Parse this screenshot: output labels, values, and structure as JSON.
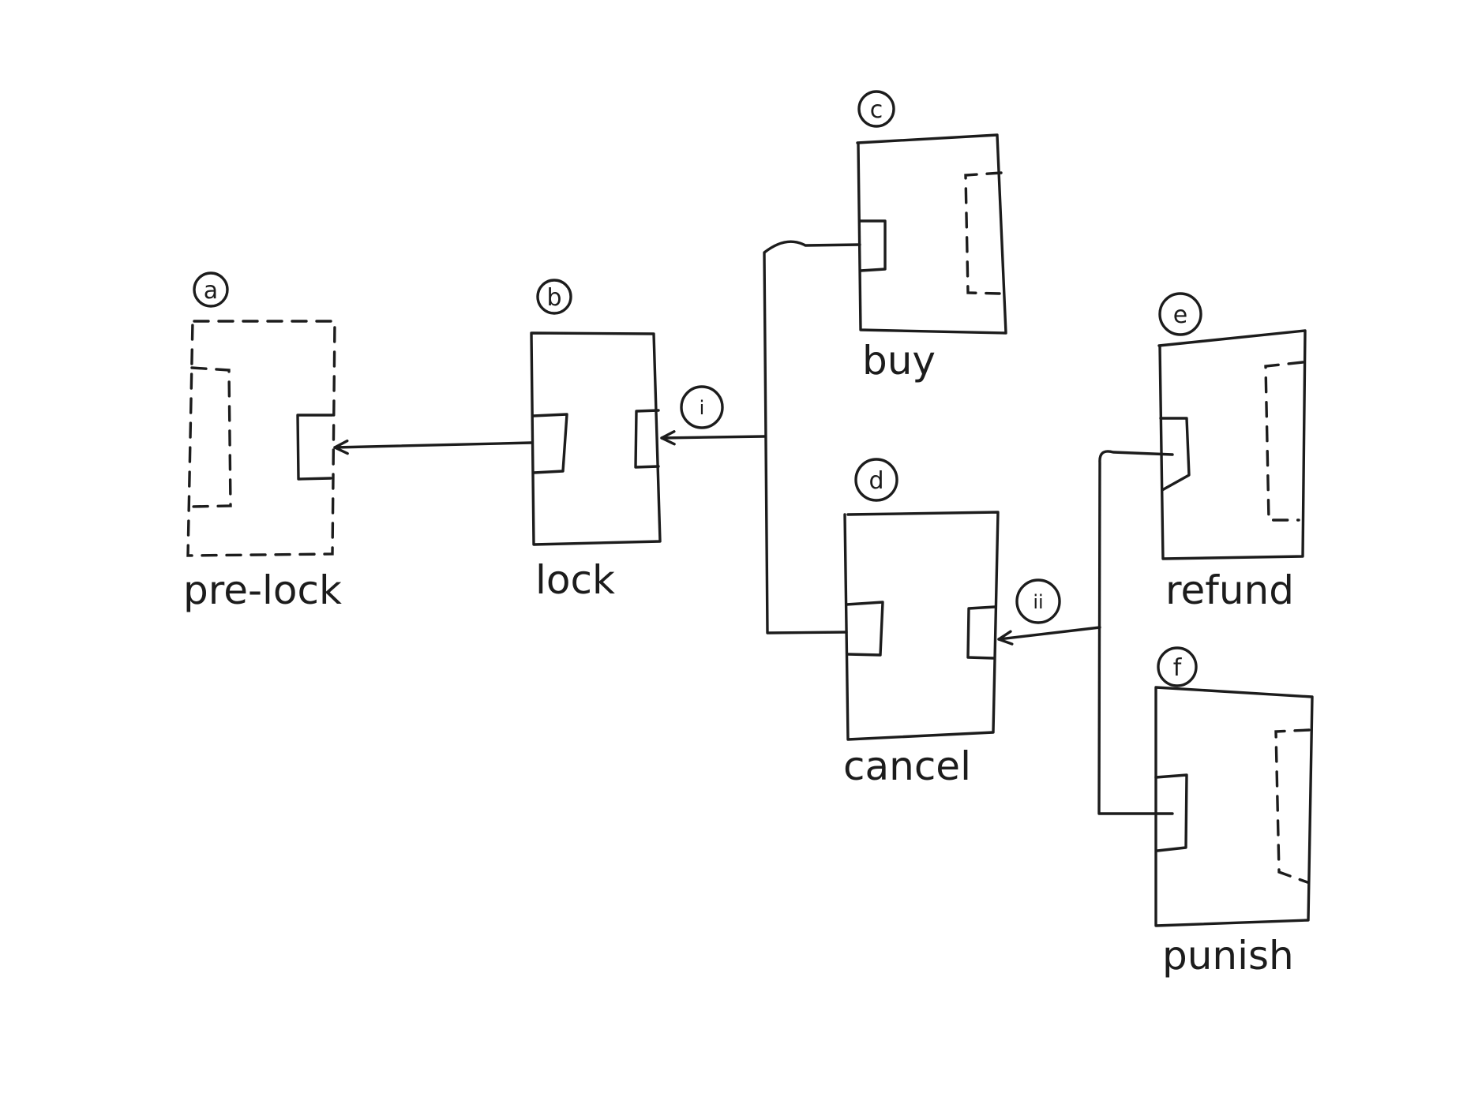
{
  "nodes": [
    {
      "id": "a",
      "label": "pre-lock",
      "style": "dashed"
    },
    {
      "id": "b",
      "label": "lock",
      "style": "solid"
    },
    {
      "id": "c",
      "label": "buy",
      "style": "solid"
    },
    {
      "id": "d",
      "label": "cancel",
      "style": "solid"
    },
    {
      "id": "e",
      "label": "refund",
      "style": "solid"
    },
    {
      "id": "f",
      "label": "punish",
      "style": "solid"
    }
  ],
  "edges": [
    {
      "from": "b",
      "to": "a",
      "label": ""
    },
    {
      "from": [
        "c",
        "d"
      ],
      "to": "b",
      "label": "i"
    },
    {
      "from": [
        "e",
        "f"
      ],
      "to": "d",
      "label": "ii"
    }
  ],
  "colors": {
    "ink": "#1c1c1c",
    "paper": "#ffffff"
  }
}
